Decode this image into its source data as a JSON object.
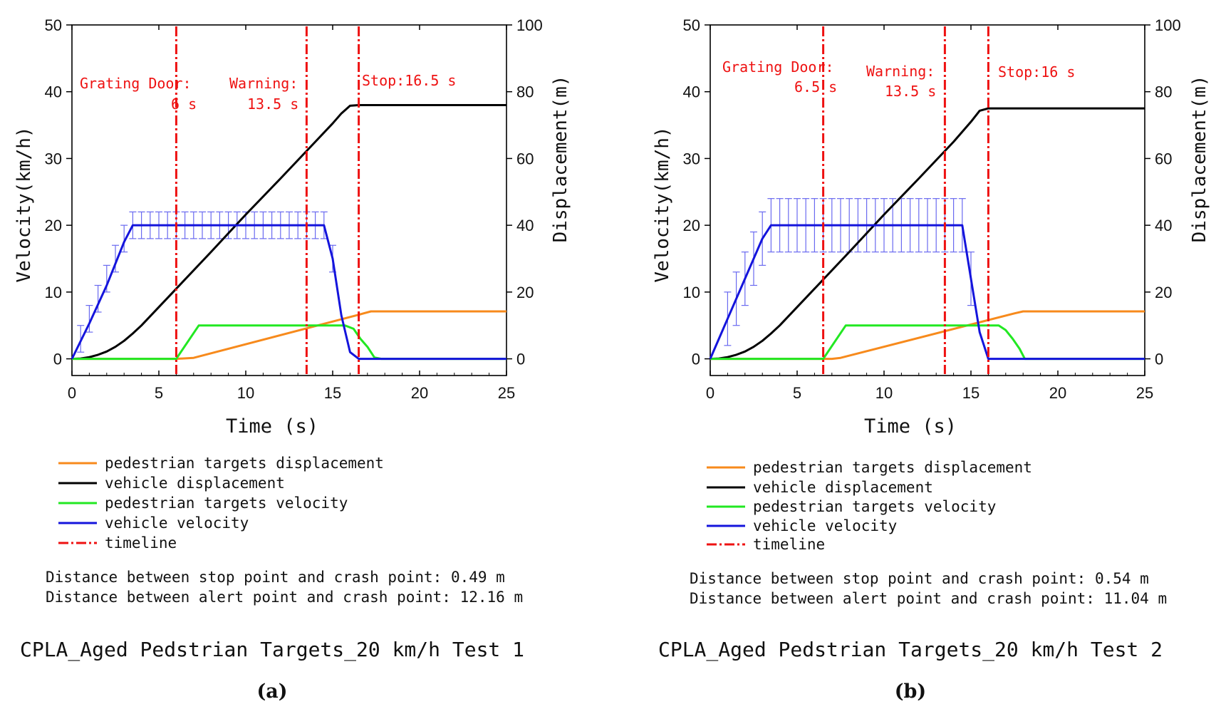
{
  "panels": [
    {
      "panel_label": "(a)",
      "caption": "CPLA_Aged Pedstrian Targets_20 km/h Test 1",
      "annotations": {
        "grating_line1": "Grating Door:",
        "grating_line2": "6 s",
        "warning_line1": "Warning:",
        "warning_line2": "13.5 s",
        "stop_text": "Stop:16.5 s"
      },
      "legend": [
        "pedestrian targets displacement",
        "vehicle displacement",
        "pedestrian targets velocity",
        "vehicle velocity",
        "timeline"
      ],
      "notes": [
        "Distance between stop point and crash point: 0.49 m",
        "Distance between alert point and crash point: 12.16 m"
      ]
    },
    {
      "panel_label": "(b)",
      "caption": "CPLA_Aged Pedstrian Targets_20 km/h Test 2",
      "annotations": {
        "grating_line1": "Grating Door:",
        "grating_line2": "6.5 s",
        "warning_line1": "Warning:",
        "warning_line2": "13.5 s",
        "stop_text": "Stop:16 s"
      },
      "legend": [
        "pedestrian targets displacement",
        "vehicle displacement",
        "pedestrian targets velocity",
        "vehicle velocity",
        "timeline"
      ],
      "notes": [
        "Distance between stop point and crash point: 0.54 m",
        "Distance between alert point and crash point: 11.04 m"
      ]
    }
  ],
  "chart_data": [
    {
      "type": "line",
      "title": "CPLA_Aged Pedstrian Targets_20 km/h Test 1",
      "xlabel": "Time (s)",
      "ylabel": "Velocity(km/h)",
      "ylabel_right": "Displacement(m)",
      "xlim": [
        0,
        25
      ],
      "ylim": [
        -2.5,
        50
      ],
      "ylim_right": [
        -5,
        100
      ],
      "x_ticks": [
        0,
        5,
        10,
        15,
        20,
        25
      ],
      "y_ticks": [
        0,
        10,
        20,
        30,
        40,
        50
      ],
      "y_ticks_right": [
        0,
        20,
        40,
        60,
        80,
        100
      ],
      "colors": {
        "pedestrian_displacement": "#f78a1c",
        "vehicle_displacement": "#000000",
        "pedestrian_velocity": "#22e822",
        "vehicle_velocity": "#1414dc",
        "timeline": "#ee1111",
        "error_bar": "#6a6af0"
      },
      "timeline_x": [
        6,
        13.5,
        16.5
      ],
      "series": [
        {
          "name": "pedestrian targets displacement",
          "axis": "right",
          "x": [
            0,
            6,
            7,
            16.5,
            17.2,
            25
          ],
          "values": [
            0,
            0,
            0.3,
            13.2,
            14.2,
            14.2
          ]
        },
        {
          "name": "vehicle displacement",
          "axis": "right",
          "x": [
            0,
            0.5,
            1,
            1.5,
            2,
            2.5,
            3,
            3.5,
            4,
            6,
            8,
            10,
            12,
            14,
            15,
            15.5,
            16,
            16.5,
            25
          ],
          "values": [
            0,
            0.1,
            0.5,
            1.2,
            2.2,
            3.6,
            5.4,
            7.6,
            10,
            21,
            32,
            43.2,
            54,
            65,
            70.5,
            73.5,
            75.8,
            76,
            76
          ]
        },
        {
          "name": "pedestrian targets velocity",
          "axis": "left",
          "x": [
            0,
            6,
            7.3,
            8,
            9,
            10,
            11,
            12,
            13,
            14,
            15,
            15.7,
            16.2,
            16.6,
            17,
            17.4,
            17.8,
            25
          ],
          "values": [
            0,
            0,
            5,
            5,
            5,
            5,
            5,
            5,
            5,
            5,
            5,
            5,
            4.5,
            3,
            1.8,
            0.2,
            0,
            0
          ]
        },
        {
          "name": "vehicle velocity",
          "axis": "left",
          "x": [
            0,
            1,
            2,
            3,
            3.5,
            14.5,
            15,
            15.5,
            16,
            16.5,
            25
          ],
          "values": [
            0,
            5.3,
            11,
            17.5,
            20,
            20,
            15,
            6.5,
            1,
            0,
            0
          ]
        }
      ],
      "error_bars": {
        "x_start": 0.5,
        "x_end": 14.5,
        "step": 0.5,
        "ramp": [
          [
            0.5,
            3,
            2
          ],
          [
            1,
            6,
            2
          ],
          [
            1.5,
            9,
            2
          ],
          [
            2,
            12,
            2
          ],
          [
            2.5,
            15,
            2
          ],
          [
            3,
            18,
            2
          ]
        ],
        "plateau_half_width": 2
      },
      "vehicle_velocity_tail_bar": {
        "x": 15,
        "value": 15,
        "half": 2
      }
    },
    {
      "type": "line",
      "title": "CPLA_Aged Pedstrian Targets_20 km/h Test 2",
      "xlabel": "Time (s)",
      "ylabel": "Velocity(km/h)",
      "ylabel_right": "Displacement(m)",
      "xlim": [
        0,
        25
      ],
      "ylim": [
        -2.5,
        50
      ],
      "ylim_right": [
        -5,
        100
      ],
      "x_ticks": [
        0,
        5,
        10,
        15,
        20,
        25
      ],
      "y_ticks": [
        0,
        10,
        20,
        30,
        40,
        50
      ],
      "y_ticks_right": [
        0,
        20,
        40,
        60,
        80,
        100
      ],
      "colors": {
        "pedestrian_displacement": "#f78a1c",
        "vehicle_displacement": "#000000",
        "pedestrian_velocity": "#22e822",
        "vehicle_velocity": "#1414dc",
        "timeline": "#ee1111",
        "error_bar": "#6a6af0"
      },
      "timeline_x": [
        6.5,
        13.5,
        16
      ],
      "series": [
        {
          "name": "pedestrian targets displacement",
          "axis": "right",
          "x": [
            0,
            7,
            7.5,
            17.5,
            18,
            25
          ],
          "values": [
            0,
            0,
            0.3,
            13.6,
            14.2,
            14.2
          ]
        },
        {
          "name": "vehicle displacement",
          "axis": "right",
          "x": [
            0,
            0.5,
            1,
            1.5,
            2,
            2.5,
            3,
            3.5,
            4,
            6,
            8,
            10,
            12,
            14,
            15,
            15.5,
            16,
            25
          ],
          "values": [
            0,
            0.1,
            0.5,
            1.2,
            2.2,
            3.6,
            5.4,
            7.6,
            10,
            21,
            32,
            43.2,
            54,
            65,
            71,
            74.3,
            75,
            75
          ]
        },
        {
          "name": "pedestrian targets velocity",
          "axis": "left",
          "x": [
            0,
            6.5,
            7.8,
            8.5,
            9.5,
            10.5,
            11.5,
            12.5,
            13.5,
            14.5,
            15.5,
            16.6,
            17,
            17.4,
            17.8,
            18.1,
            25
          ],
          "values": [
            0,
            0,
            5,
            5,
            5,
            5,
            5,
            5,
            5,
            5,
            5,
            5,
            4.3,
            3,
            1.5,
            0,
            0
          ]
        },
        {
          "name": "vehicle velocity",
          "axis": "left",
          "x": [
            0,
            1,
            2,
            3,
            3.5,
            14.5,
            15.5,
            16,
            25
          ],
          "values": [
            0,
            6,
            12,
            18,
            20,
            20,
            4,
            0,
            0
          ]
        }
      ],
      "error_bars": {
        "x_start": 1,
        "x_end": 14.5,
        "step": 0.5,
        "ramp": [
          [
            1,
            6,
            4
          ],
          [
            1.5,
            9,
            4
          ],
          [
            2,
            12,
            4
          ],
          [
            2.5,
            15,
            4
          ],
          [
            3,
            18,
            4
          ]
        ],
        "plateau_half_width": 4
      },
      "vehicle_velocity_tail_bar": {
        "x": 15,
        "value": 12,
        "half": 4
      }
    }
  ]
}
